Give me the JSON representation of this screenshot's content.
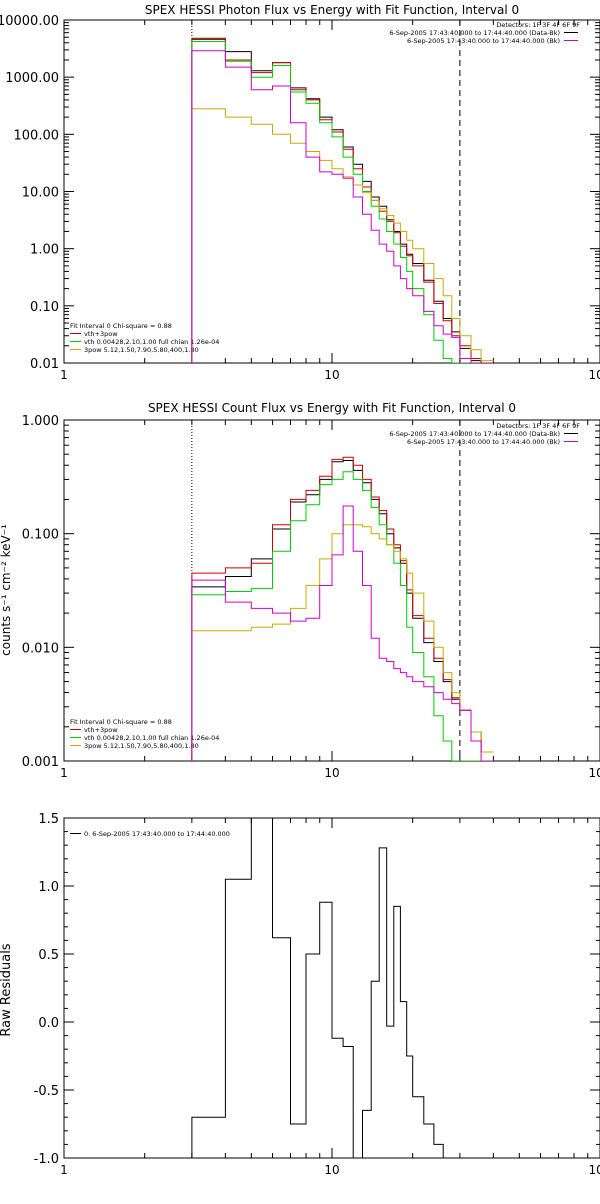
{
  "chart_data": [
    {
      "type": "line",
      "title": "SPEX HESSI Photon Flux vs Energy with Fit Function, Interval 0",
      "ylabel": "",
      "xlabel": "",
      "xscale": "log",
      "yscale": "log",
      "xlim": [
        1,
        100
      ],
      "ylim": [
        0.01,
        10000
      ],
      "xticks": [
        1,
        10,
        100
      ],
      "xtick_labels": [
        "1",
        "10",
        "100"
      ],
      "yticks": [
        0.01,
        0.1,
        1,
        10,
        100,
        1000,
        10000
      ],
      "ytick_labels": [
        "0.01",
        "0.10",
        "1.00",
        "10.00",
        "100.00",
        "1000.00",
        "10000.00"
      ],
      "vlines": [
        {
          "x": 3.0,
          "style": "dotted",
          "color": "#000000"
        },
        {
          "x": 30.0,
          "style": "dashed",
          "color": "#000000"
        }
      ],
      "header_lines": [
        "Detectors: 1F 3F 4F 6F 9F",
        "6-Sep-2005 17:43:40.000 to 17:44:40.000 (Data-Bk)",
        "6-Sep-2005 17:43:40.000 to 17:44:40.000 (Bk)"
      ],
      "header_line_colors": [
        "",
        "#000000",
        "#cc00cc"
      ],
      "fit_legend": [
        {
          "text": "Fit Interval 0   Chi-square = 0.88",
          "color": ""
        },
        {
          "text": "vth+3pow",
          "color": "#cc0000"
        },
        {
          "text": "vth 0.00428,2.10,1.00   full chian 1.26e-04",
          "color": "#00cc00"
        },
        {
          "text": "3pow 5.12,1.50,7.90,5.80,400,1.80",
          "color": "#ccaa00"
        }
      ],
      "bin_edges": [
        3,
        4,
        5,
        6,
        7,
        8,
        9,
        10,
        11,
        12,
        13,
        14,
        15,
        16,
        17,
        18,
        19,
        20,
        22,
        24,
        26,
        28,
        30,
        33,
        36,
        40
      ],
      "series": [
        {
          "name": "data",
          "color": "#000000",
          "values": [
            4600,
            2800,
            1300,
            1800,
            650,
            420,
            200,
            120,
            60,
            30,
            15,
            8,
            5.5,
            3.2,
            2.0,
            1.2,
            0.8,
            0.55,
            0.28,
            0.12,
            0.06,
            0.035,
            0.018,
            0.011,
            0.01
          ]
        },
        {
          "name": "vth+3pow",
          "color": "#cc0000",
          "values": [
            4800,
            2000,
            1200,
            1800,
            600,
            400,
            180,
            110,
            55,
            25,
            12,
            7,
            4.5,
            3.0,
            1.9,
            1.1,
            0.75,
            0.5,
            0.26,
            0.11,
            0.055,
            0.03,
            0.02,
            0.012,
            0.01
          ]
        },
        {
          "name": "vth",
          "color": "#00cc00",
          "values": [
            4200,
            1900,
            1000,
            1600,
            550,
            350,
            160,
            90,
            40,
            20,
            10,
            5.5,
            3.3,
            2.0,
            1.2,
            0.7,
            0.4,
            0.2,
            0.07,
            0.025,
            0.012,
            0.0,
            0.0,
            0.0,
            0.0
          ]
        },
        {
          "name": "3pow",
          "color": "#ccaa00",
          "values": [
            280,
            200,
            150,
            100,
            70,
            50,
            35,
            25,
            18,
            13,
            9.5,
            7,
            5,
            3.8,
            2.8,
            2.0,
            1.4,
            1.0,
            0.55,
            0.3,
            0.15,
            0.06,
            0.03,
            0.017,
            0.011
          ]
        },
        {
          "name": "bk",
          "color": "#cc00cc",
          "values": [
            2900,
            1500,
            600,
            700,
            160,
            40,
            22,
            20,
            17,
            8,
            4,
            2.1,
            1.2,
            0.9,
            0.5,
            0.3,
            0.2,
            0.15,
            0.08,
            0.045,
            0.032,
            0.028,
            0.012,
            0.0,
            0.0
          ]
        }
      ]
    },
    {
      "type": "line",
      "title": "SPEX HESSI Count Flux vs Energy with Fit Function, Interval 0",
      "ylabel": "counts s⁻¹ cm⁻² keV⁻¹",
      "xlabel": "",
      "xscale": "log",
      "yscale": "log",
      "xlim": [
        1,
        100
      ],
      "ylim": [
        0.001,
        1
      ],
      "xticks": [
        1,
        10,
        100
      ],
      "xtick_labels": [
        "1",
        "10",
        "100"
      ],
      "yticks": [
        0.001,
        0.01,
        0.1,
        1
      ],
      "ytick_labels": [
        "0.001",
        "0.010",
        "0.100",
        "1.000"
      ],
      "vlines": [
        {
          "x": 3.0,
          "style": "dotted",
          "color": "#000000"
        },
        {
          "x": 30.0,
          "style": "dashed",
          "color": "#000000"
        }
      ],
      "header_lines": [
        "Detectors: 1F 3F 4F 6F 9F",
        "6-Sep-2005 17:43:40.000 to 17:44:40.000 (Data-Bk)",
        "6-Sep-2005 17:43:40.000 to 17:44:40.000 (Bk)"
      ],
      "header_line_colors": [
        "",
        "#000000",
        "#cc00cc"
      ],
      "fit_legend": [
        {
          "text": "Fit Interval 0   Chi-square = 0.88",
          "color": ""
        },
        {
          "text": "vth+3pow",
          "color": "#cc0000"
        },
        {
          "text": "vth 0.00428,2.10,1.00   full chian 1.26e-04",
          "color": "#00cc00"
        },
        {
          "text": "3pow 5.12,1.50,7.90,5.80,400,1.80",
          "color": "#ccaa00"
        }
      ],
      "bin_edges": [
        3,
        4,
        5,
        6,
        7,
        8,
        9,
        10,
        11,
        12,
        13,
        14,
        15,
        16,
        17,
        18,
        19,
        20,
        22,
        24,
        26,
        28,
        30,
        33,
        36,
        40
      ],
      "series": [
        {
          "name": "data",
          "color": "#000000",
          "values": [
            0.034,
            0.042,
            0.06,
            0.11,
            0.19,
            0.22,
            0.3,
            0.43,
            0.44,
            0.36,
            0.28,
            0.2,
            0.15,
            0.1,
            0.075,
            0.055,
            0.03,
            0.018,
            0.011,
            0.0075,
            0.005,
            0.0035,
            0.0028,
            0.0018,
            0.0012
          ]
        },
        {
          "name": "vth+3pow",
          "color": "#cc0000",
          "values": [
            0.045,
            0.05,
            0.055,
            0.12,
            0.2,
            0.24,
            0.32,
            0.45,
            0.47,
            0.4,
            0.3,
            0.21,
            0.16,
            0.11,
            0.08,
            0.058,
            0.032,
            0.019,
            0.012,
            0.008,
            0.0052,
            0.0036,
            0.0028,
            0.0018,
            0.0012
          ]
        },
        {
          "name": "vth",
          "color": "#00cc00",
          "values": [
            0.029,
            0.031,
            0.033,
            0.07,
            0.13,
            0.18,
            0.27,
            0.3,
            0.35,
            0.3,
            0.24,
            0.17,
            0.12,
            0.08,
            0.055,
            0.035,
            0.015,
            0.009,
            0.0055,
            0.0025,
            0.0015,
            0.0,
            0.0,
            0.0,
            0.0
          ]
        },
        {
          "name": "3pow",
          "color": "#ccaa00",
          "values": [
            0.014,
            0.014,
            0.015,
            0.016,
            0.022,
            0.035,
            0.06,
            0.1,
            0.12,
            0.12,
            0.115,
            0.1,
            0.09,
            0.08,
            0.07,
            0.06,
            0.045,
            0.03,
            0.017,
            0.01,
            0.006,
            0.004,
            0.0028,
            0.0018,
            0.0012
          ]
        },
        {
          "name": "bk",
          "color": "#cc00cc",
          "values": [
            0.039,
            0.025,
            0.022,
            0.02,
            0.017,
            0.018,
            0.035,
            0.065,
            0.175,
            0.07,
            0.035,
            0.012,
            0.008,
            0.0075,
            0.0065,
            0.006,
            0.0055,
            0.005,
            0.0045,
            0.004,
            0.0035,
            0.0032,
            0.0028,
            0.0015,
            0.0
          ]
        }
      ]
    },
    {
      "type": "line",
      "title": "",
      "ylabel": "Raw Residuals",
      "xlabel": "",
      "xscale": "log",
      "yscale": "linear",
      "xlim": [
        1,
        100
      ],
      "ylim": [
        -1.0,
        1.5
      ],
      "xticks": [
        1,
        10,
        100
      ],
      "xtick_labels": [
        "1",
        "10",
        "100"
      ],
      "yticks": [
        -1.0,
        -0.5,
        0.0,
        0.5,
        1.0,
        1.5
      ],
      "ytick_labels": [
        "-1.0",
        "-0.5",
        "0.0",
        "0.5",
        "1.0",
        "1.5"
      ],
      "legend_text": "0.  6-Sep-2005 17:43:40.000 to 17:44:40.000",
      "bin_edges": [
        3,
        4,
        5,
        6,
        7,
        8,
        9,
        10,
        11,
        12,
        13,
        14,
        15,
        16,
        17,
        18,
        19,
        20,
        22,
        24,
        26,
        28,
        30
      ],
      "series": [
        {
          "name": "residual",
          "color": "#000000",
          "values": [
            -0.7,
            1.05,
            1.5,
            0.62,
            -0.75,
            0.5,
            0.88,
            -0.12,
            -0.18,
            -1.05,
            -0.65,
            0.3,
            1.28,
            -0.03,
            0.85,
            0.15,
            -0.25,
            -0.55,
            -0.75,
            -0.9,
            -1.05,
            -1.05
          ]
        }
      ]
    }
  ]
}
